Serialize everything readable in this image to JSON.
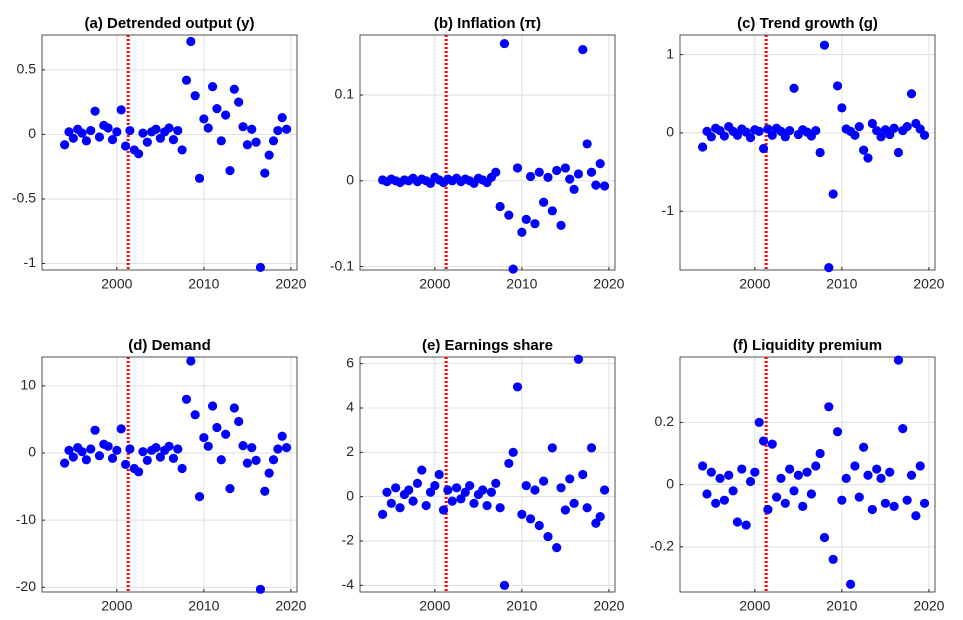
{
  "chart_data": [
    {
      "type": "scatter",
      "title": "(a) Detrended output (y)",
      "color": "#0000ff",
      "grid": true,
      "vline": 2001.3,
      "vline_color": "#ff0000",
      "xlim": [
        1991.4,
        2020.7
      ],
      "xticks": [
        2000,
        2010,
        2020
      ],
      "ylim": [
        -1.05,
        0.77
      ],
      "yticks": [
        -1,
        -0.5,
        0,
        0.5
      ],
      "x": [
        1994,
        1994.5,
        1995,
        1995.5,
        1996,
        1996.5,
        1997,
        1997.5,
        1998,
        1998.5,
        1999,
        1999.5,
        2000,
        2000.5,
        2001,
        2001.5,
        2002,
        2002.5,
        2003,
        2003.5,
        2004,
        2004.5,
        2005,
        2005.5,
        2006,
        2006.5,
        2007,
        2007.5,
        2008,
        2008.5,
        2009,
        2009.5,
        2010,
        2010.5,
        2011,
        2011.5,
        2012,
        2012.5,
        2013,
        2013.5,
        2014,
        2014.5,
        2015,
        2015.5,
        2016,
        2016.5,
        2017,
        2017.5,
        2018,
        2018.5,
        2019,
        2019.5
      ],
      "values": [
        -0.08,
        0.02,
        -0.03,
        0.04,
        0.01,
        -0.05,
        0.03,
        0.18,
        -0.02,
        0.07,
        0.05,
        -0.04,
        0.02,
        0.19,
        -0.09,
        0.03,
        -0.12,
        -0.15,
        0.01,
        -0.06,
        0.02,
        0.04,
        -0.03,
        0.02,
        0.05,
        -0.04,
        0.03,
        -0.12,
        0.42,
        0.72,
        0.3,
        -0.34,
        0.12,
        0.05,
        0.37,
        0.2,
        -0.05,
        0.15,
        -0.28,
        0.35,
        0.25,
        0.06,
        -0.08,
        0.04,
        -0.06,
        -1.03,
        -0.3,
        -0.16,
        -0.05,
        0.03,
        0.13,
        0.04
      ]
    },
    {
      "type": "scatter",
      "title": "(b) Inflation (π)",
      "color": "#0000ff",
      "grid": true,
      "vline": 2001.3,
      "vline_color": "#ff0000",
      "xlim": [
        1991.4,
        2020.7
      ],
      "xticks": [
        2000,
        2010,
        2020
      ],
      "ylim": [
        -0.104,
        0.17
      ],
      "yticks": [
        -0.1,
        0,
        0.1
      ],
      "x": [
        1994,
        1994.5,
        1995,
        1995.5,
        1996,
        1996.5,
        1997,
        1997.5,
        1998,
        1998.5,
        1999,
        1999.5,
        2000,
        2000.5,
        2001,
        2001.5,
        2002,
        2002.5,
        2003,
        2003.5,
        2004,
        2004.5,
        2005,
        2005.5,
        2006,
        2006.5,
        2007,
        2007.5,
        2008,
        2008.5,
        2009,
        2009.5,
        2010,
        2010.5,
        2011,
        2011.5,
        2012,
        2012.5,
        2013,
        2013.5,
        2014,
        2014.5,
        2015,
        2015.5,
        2016,
        2016.5,
        2017,
        2017.5,
        2018,
        2018.5,
        2019,
        2019.5
      ],
      "values": [
        0.001,
        -0.001,
        0.002,
        0,
        -0.002,
        0.001,
        0,
        0.003,
        -0.001,
        0.002,
        0,
        -0.003,
        0.004,
        0.001,
        -0.002,
        0.002,
        0,
        0.003,
        -0.001,
        0.002,
        0,
        -0.003,
        0.003,
        0.001,
        -0.002,
        0.004,
        0.01,
        -0.03,
        0.16,
        -0.04,
        -0.103,
        0.015,
        -0.06,
        -0.045,
        0.005,
        -0.05,
        0.01,
        -0.025,
        0.004,
        -0.035,
        0.012,
        -0.052,
        0.015,
        0.002,
        -0.01,
        0.008,
        0.153,
        0.043,
        0.01,
        -0.005,
        0.02,
        -0.006
      ]
    },
    {
      "type": "scatter",
      "title": "(c) Trend growth (g)",
      "color": "#0000ff",
      "grid": true,
      "vline": 2001.3,
      "vline_color": "#ff0000",
      "xlim": [
        1991.4,
        2020.7
      ],
      "xticks": [
        2000,
        2010,
        2020
      ],
      "ylim": [
        -1.75,
        1.25
      ],
      "yticks": [
        -1,
        0,
        1
      ],
      "x": [
        1994,
        1994.5,
        1995,
        1995.5,
        1996,
        1996.5,
        1997,
        1997.5,
        1998,
        1998.5,
        1999,
        1999.5,
        2000,
        2000.5,
        2001,
        2001.5,
        2002,
        2002.5,
        2003,
        2003.5,
        2004,
        2004.5,
        2005,
        2005.5,
        2006,
        2006.5,
        2007,
        2007.5,
        2008,
        2008.5,
        2009,
        2009.5,
        2010,
        2010.5,
        2011,
        2011.5,
        2012,
        2012.5,
        2013,
        2013.5,
        2014,
        2014.5,
        2015,
        2015.5,
        2016,
        2016.5,
        2017,
        2017.5,
        2018,
        2018.5,
        2019,
        2019.5
      ],
      "values": [
        -0.18,
        0.02,
        -0.05,
        0.06,
        0.03,
        -0.04,
        0.08,
        0.02,
        -0.03,
        0.05,
        0.01,
        -0.06,
        0.04,
        0.02,
        -0.2,
        0.05,
        -0.03,
        0.06,
        0.02,
        -0.05,
        0.03,
        0.57,
        -0.02,
        0.04,
        0.01,
        -0.04,
        0.03,
        -0.25,
        1.12,
        -1.72,
        -0.78,
        0.6,
        0.32,
        0.05,
        0.02,
        -0.03,
        0.08,
        -0.22,
        -0.32,
        0.12,
        0.03,
        -0.05,
        0.04,
        -0.02,
        0.06,
        -0.25,
        0.03,
        0.08,
        0.5,
        0.12,
        0.05,
        -0.03
      ]
    },
    {
      "type": "scatter",
      "title": "(d) Demand",
      "color": "#0000ff",
      "grid": true,
      "vline": 2001.3,
      "vline_color": "#ff0000",
      "xlim": [
        1991.4,
        2020.7
      ],
      "xticks": [
        2000,
        2010,
        2020
      ],
      "ylim": [
        -20.7,
        14.3
      ],
      "yticks": [
        -20,
        -10,
        0,
        10
      ],
      "x": [
        1994,
        1994.5,
        1995,
        1995.5,
        1996,
        1996.5,
        1997,
        1997.5,
        1998,
        1998.5,
        1999,
        1999.5,
        2000,
        2000.5,
        2001,
        2001.5,
        2002,
        2002.5,
        2003,
        2003.5,
        2004,
        2004.5,
        2005,
        2005.5,
        2006,
        2006.5,
        2007,
        2007.5,
        2008,
        2008.5,
        2009,
        2009.5,
        2010,
        2010.5,
        2011,
        2011.5,
        2012,
        2012.5,
        2013,
        2013.5,
        2014,
        2014.5,
        2015,
        2015.5,
        2016,
        2016.5,
        2017,
        2017.5,
        2018,
        2018.5,
        2019,
        2019.5
      ],
      "values": [
        -1.5,
        0.4,
        -0.6,
        0.8,
        0.2,
        -1,
        0.6,
        3.4,
        -0.4,
        1.3,
        1,
        -0.8,
        0.4,
        3.6,
        -1.7,
        0.6,
        -2.3,
        -2.8,
        0.2,
        -1.1,
        0.4,
        0.8,
        -0.6,
        0.4,
        1,
        -0.8,
        0.6,
        -2.3,
        8,
        13.7,
        5.7,
        -6.5,
        2.3,
        1,
        7,
        3.8,
        -1,
        2.8,
        -5.3,
        6.7,
        4.7,
        1.1,
        -1.5,
        0.8,
        -1.1,
        -20.3,
        -5.7,
        -3,
        -1,
        0.6,
        2.5,
        0.8
      ]
    },
    {
      "type": "scatter",
      "title": "(e) Earnings share",
      "color": "#0000ff",
      "grid": true,
      "vline": 2001.3,
      "vline_color": "#ff0000",
      "xlim": [
        1991.4,
        2020.7
      ],
      "xticks": [
        2000,
        2010,
        2020
      ],
      "ylim": [
        -4.3,
        6.3
      ],
      "yticks": [
        -4,
        -2,
        0,
        2,
        4,
        6
      ],
      "x": [
        1994,
        1994.5,
        1995,
        1995.5,
        1996,
        1996.5,
        1997,
        1997.5,
        1998,
        1998.5,
        1999,
        1999.5,
        2000,
        2000.5,
        2001,
        2001.5,
        2002,
        2002.5,
        2003,
        2003.5,
        2004,
        2004.5,
        2005,
        2005.5,
        2006,
        2006.5,
        2007,
        2007.5,
        2008,
        2008.5,
        2009,
        2009.5,
        2010,
        2010.5,
        2011,
        2011.5,
        2012,
        2012.5,
        2013,
        2013.5,
        2014,
        2014.5,
        2015,
        2015.5,
        2016,
        2016.5,
        2017,
        2017.5,
        2018,
        2018.5,
        2019,
        2019.5
      ],
      "values": [
        -0.8,
        0.2,
        -0.3,
        0.4,
        -0.5,
        0.1,
        0.3,
        -0.2,
        0.6,
        1.2,
        -0.4,
        0.2,
        0.5,
        1.0,
        -0.6,
        0.3,
        -0.2,
        0.4,
        -0.1,
        0.2,
        0.5,
        -0.3,
        0.1,
        0.3,
        -0.4,
        0.2,
        0.6,
        -0.5,
        -4.0,
        1.5,
        2.0,
        4.95,
        -0.8,
        0.5,
        -1.0,
        0.3,
        -1.3,
        0.7,
        -1.8,
        2.2,
        -2.3,
        0.4,
        -0.6,
        0.8,
        -0.3,
        6.2,
        1.0,
        -0.5,
        2.2,
        -1.2,
        -0.9,
        0.3
      ]
    },
    {
      "type": "scatter",
      "title": "(f) Liquidity premium",
      "color": "#0000ff",
      "grid": true,
      "vline": 2001.3,
      "vline_color": "#ff0000",
      "xlim": [
        1991.4,
        2020.7
      ],
      "xticks": [
        2000,
        2010,
        2020
      ],
      "ylim": [
        -0.345,
        0.41
      ],
      "yticks": [
        -0.2,
        0,
        0.2
      ],
      "x": [
        1994,
        1994.5,
        1995,
        1995.5,
        1996,
        1996.5,
        1997,
        1997.5,
        1998,
        1998.5,
        1999,
        1999.5,
        2000,
        2000.5,
        2001,
        2001.5,
        2002,
        2002.5,
        2003,
        2003.5,
        2004,
        2004.5,
        2005,
        2005.5,
        2006,
        2006.5,
        2007,
        2007.5,
        2008,
        2008.5,
        2009,
        2009.5,
        2010,
        2010.5,
        2011,
        2011.5,
        2012,
        2012.5,
        2013,
        2013.5,
        2014,
        2014.5,
        2015,
        2015.5,
        2016,
        2016.5,
        2017,
        2017.5,
        2018,
        2018.5,
        2019,
        2019.5
      ],
      "values": [
        0.06,
        -0.03,
        0.04,
        -0.06,
        0.02,
        -0.05,
        0.03,
        -0.02,
        -0.12,
        0.05,
        -0.13,
        0.01,
        0.04,
        0.2,
        0.14,
        -0.08,
        0.13,
        -0.04,
        0.02,
        -0.06,
        0.05,
        -0.02,
        0.03,
        -0.07,
        0.04,
        -0.03,
        0.06,
        0.1,
        -0.17,
        0.25,
        -0.24,
        0.17,
        -0.05,
        0.02,
        -0.32,
        0.06,
        -0.04,
        0.12,
        0.03,
        -0.08,
        0.05,
        0.02,
        -0.06,
        0.04,
        -0.07,
        0.4,
        0.18,
        -0.05,
        0.03,
        -0.1,
        0.06,
        -0.06
      ]
    }
  ]
}
